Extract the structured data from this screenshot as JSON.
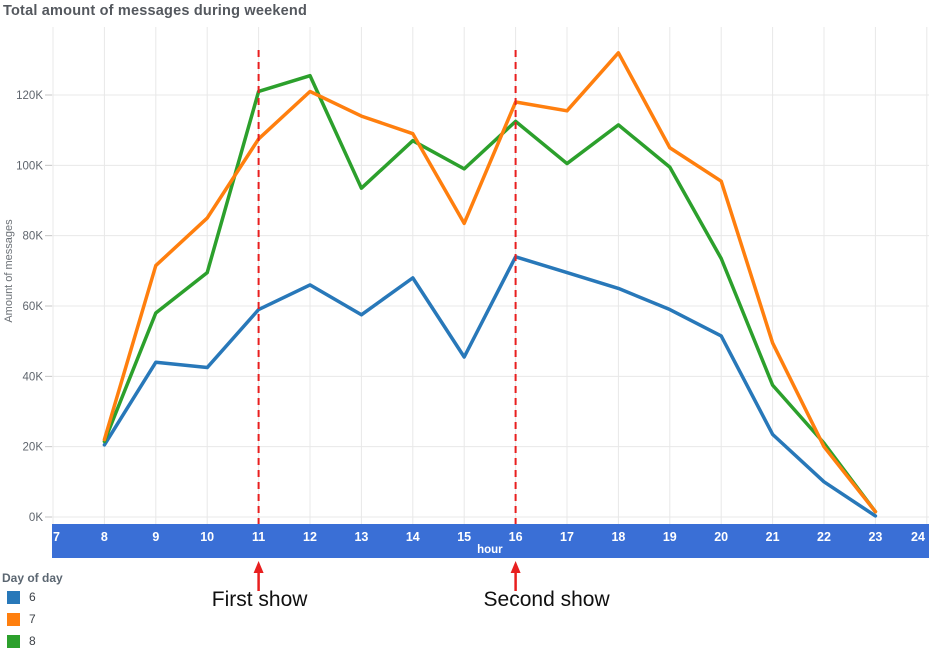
{
  "chart_data": {
    "type": "line",
    "title": "Total amount of messages during weekend",
    "xlabel": "hour",
    "ylabel": "Amount of messages",
    "xlim": [
      7,
      24
    ],
    "ylim_thousands": [
      0,
      139
    ],
    "grid": true,
    "x_ticks": [
      7,
      8,
      9,
      10,
      11,
      12,
      13,
      14,
      15,
      16,
      17,
      18,
      19,
      20,
      21,
      22,
      23,
      24
    ],
    "y_ticks": [
      {
        "value_thousands": 0,
        "label": "0K"
      },
      {
        "value_thousands": 20,
        "label": "20K"
      },
      {
        "value_thousands": 40,
        "label": "40K"
      },
      {
        "value_thousands": 60,
        "label": "60K"
      },
      {
        "value_thousands": 80,
        "label": "80K"
      },
      {
        "value_thousands": 100,
        "label": "100K"
      },
      {
        "value_thousands": 120,
        "label": "120K"
      }
    ],
    "x": [
      8,
      9,
      10,
      11,
      12,
      13,
      14,
      15,
      16,
      17,
      18,
      19,
      20,
      21,
      22,
      23
    ],
    "series": [
      {
        "name": "6",
        "color": "#2878b9",
        "values_thousands": [
          20.5,
          44,
          42.5,
          59,
          66,
          57.5,
          68,
          45.5,
          74,
          69.5,
          65,
          59,
          51.5,
          23.5,
          10,
          0.3
        ]
      },
      {
        "name": "7",
        "color": "#ff7f0e",
        "values_thousands": [
          22,
          71.5,
          85,
          107.5,
          121,
          114,
          109,
          83.5,
          118,
          115.5,
          132,
          105,
          95.5,
          49.5,
          20,
          1.5
        ]
      },
      {
        "name": "8",
        "color": "#2ca02c",
        "values_thousands": [
          21.5,
          58,
          69.5,
          121,
          125.5,
          93.5,
          107,
          99,
          112.5,
          100.5,
          111.5,
          99.5,
          73.5,
          37.5,
          21,
          1.5
        ]
      }
    ],
    "draw_order": [
      0,
      2,
      1
    ],
    "legend": {
      "title": "Day of day",
      "position": "bottom-left",
      "entries": [
        "6",
        "7",
        "8"
      ]
    },
    "annotations": [
      {
        "label": "First show",
        "hour": 11,
        "label_dx": 1
      },
      {
        "label": "Second show",
        "hour": 16,
        "label_dx": 31
      }
    ],
    "colors": {
      "axis_bar": "#3a6fd6",
      "axis_bar_text": "#ffffff",
      "rule": "#e81f1f",
      "grid": "#e8e8e8",
      "y_tick_stub": "#c4c4c4",
      "tick_label": "#5f656d",
      "title": "#54585e"
    }
  }
}
